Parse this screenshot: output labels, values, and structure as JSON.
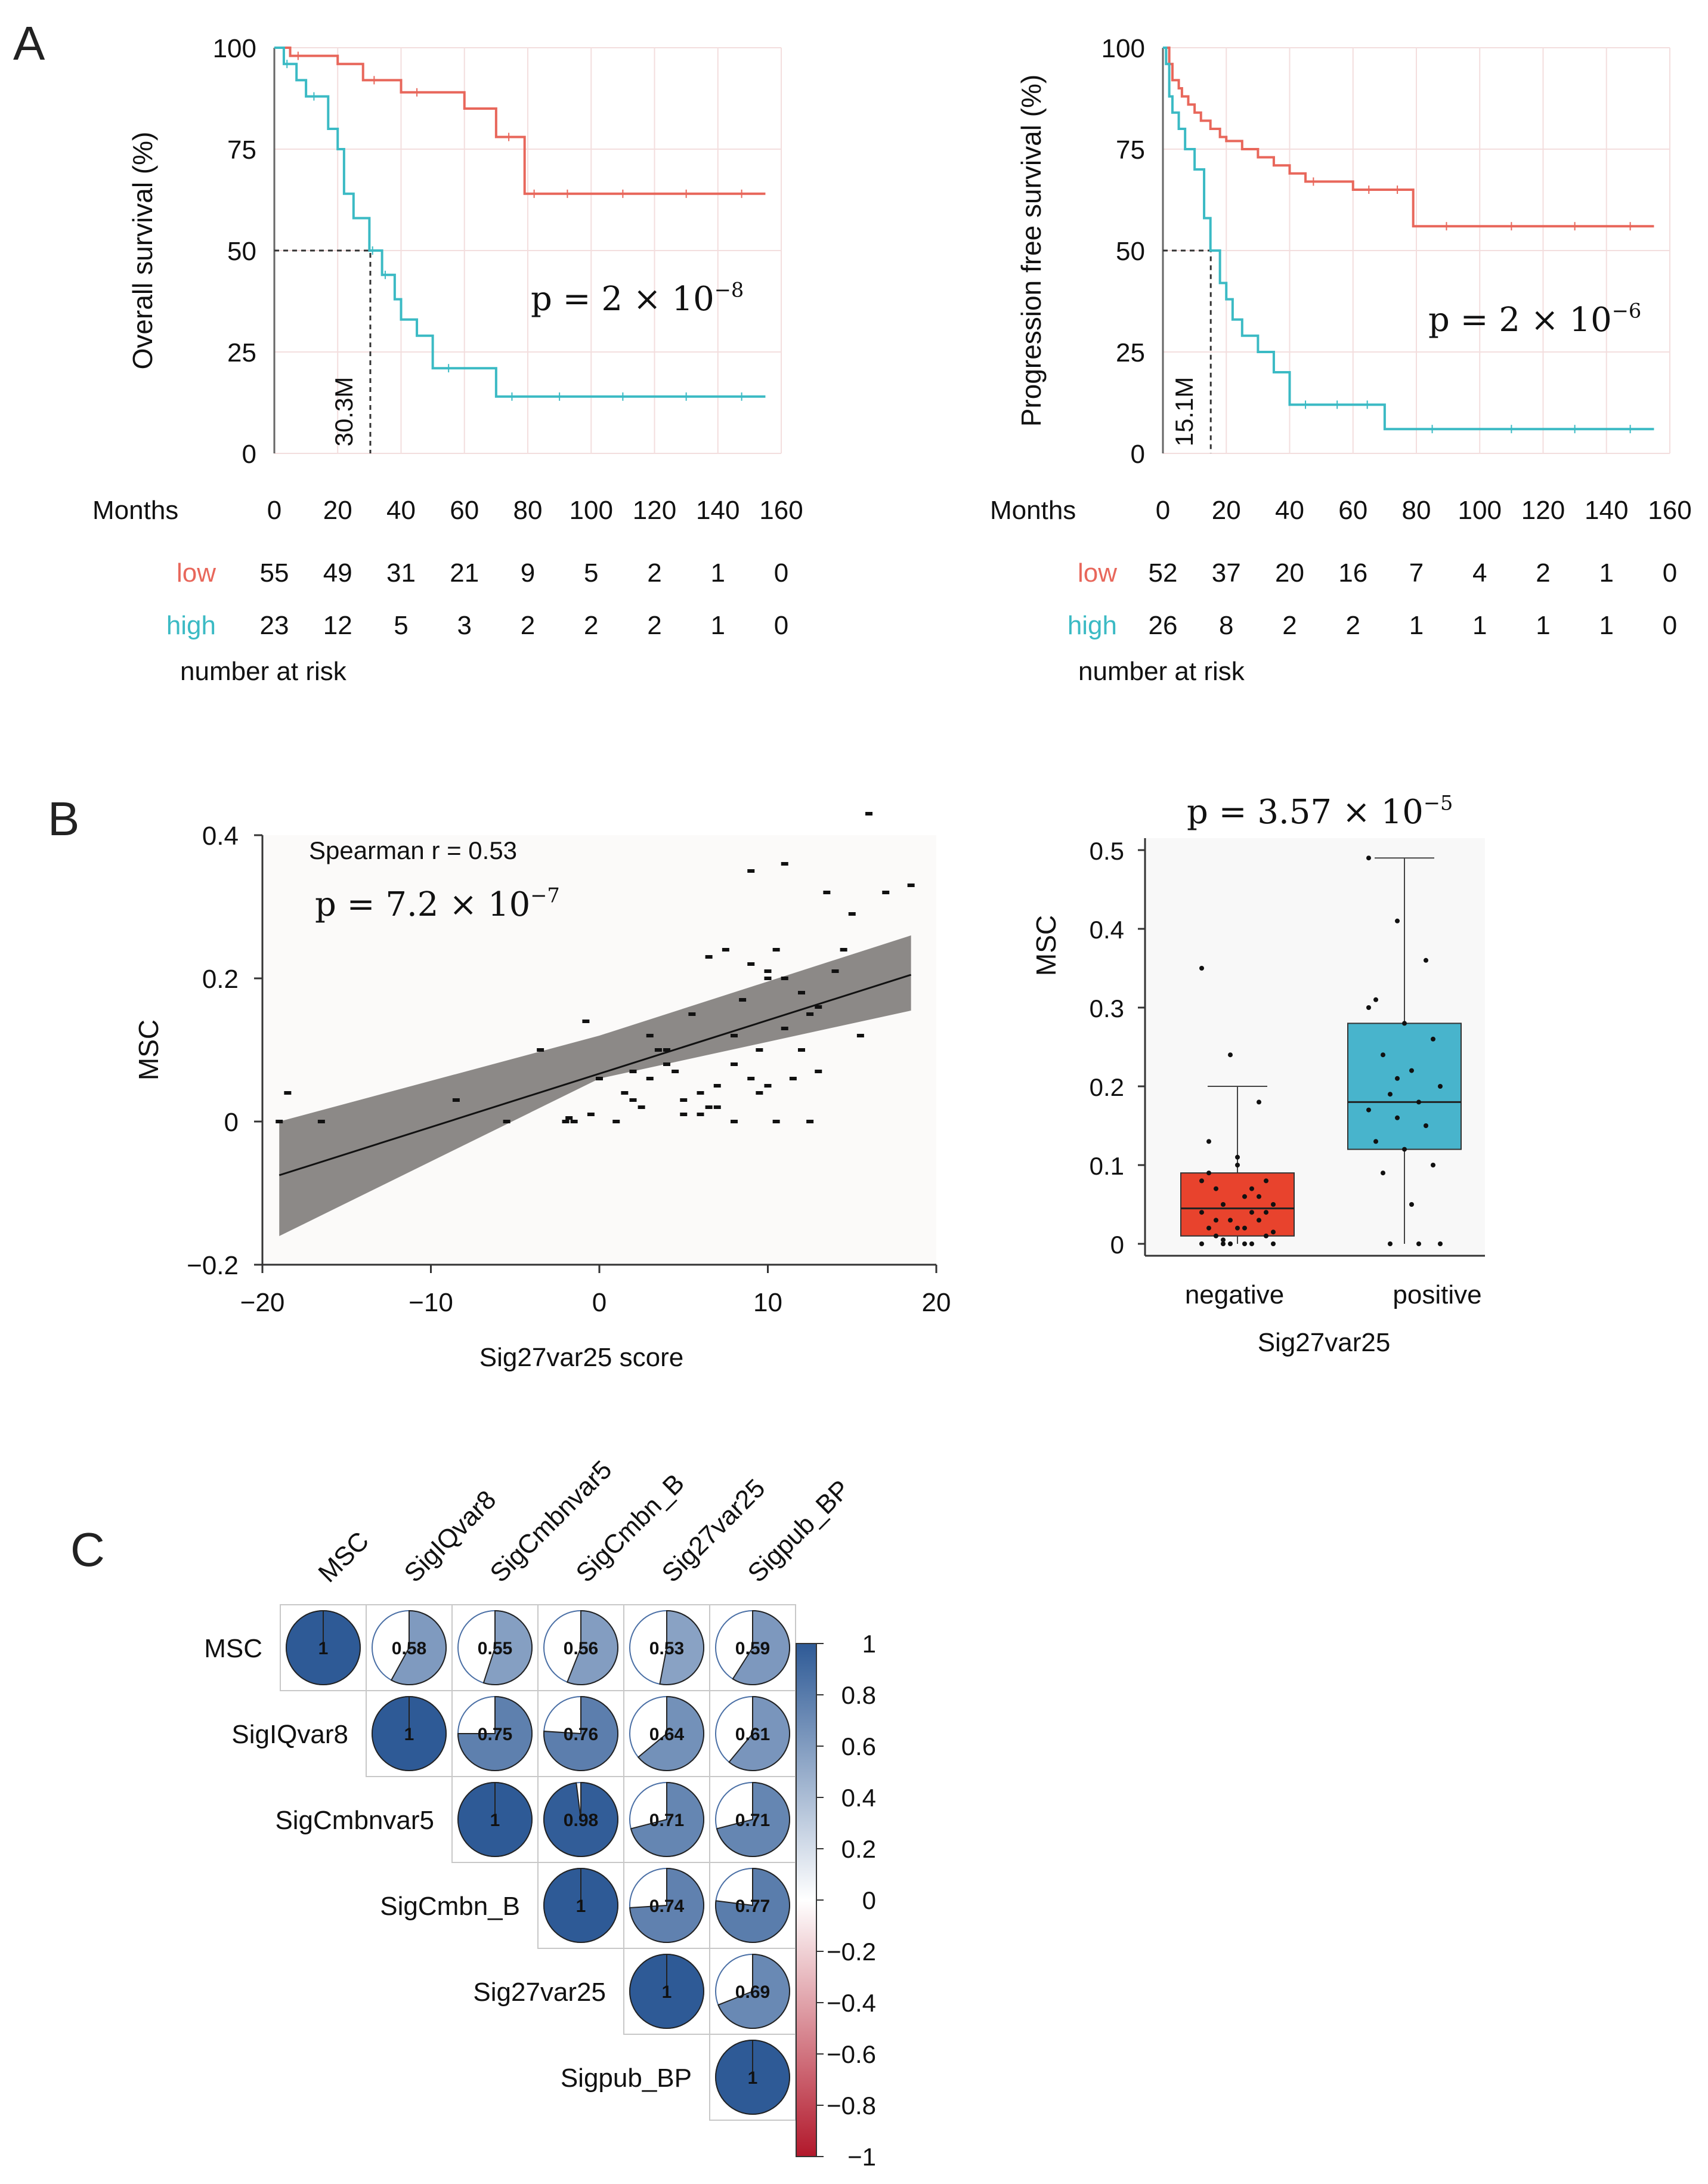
{
  "panels": {
    "a": {
      "label": "A"
    },
    "b": {
      "label": "B"
    },
    "c": {
      "label": "C"
    }
  },
  "colors": {
    "low": "#E8675B",
    "high": "#3BBAC4",
    "grid": "#F3DEDE",
    "band": "#8C8987",
    "box_negative": "#E8432D",
    "box_positive": "#48B4CC",
    "corr_high": "#2E5A96",
    "corr_low": "#B2182B"
  },
  "chart_data": [
    {
      "id": "os",
      "type": "km",
      "title": "",
      "ylabel": "Overall survival (%)",
      "xlabel": "Months",
      "xlim": [
        0,
        160
      ],
      "ylim": [
        0,
        100
      ],
      "xticks": [
        "0",
        "20",
        "40",
        "60",
        "80",
        "100",
        "120",
        "140",
        "160"
      ],
      "yticks": [
        "0",
        "25",
        "50",
        "75",
        "100"
      ],
      "pvalue": {
        "prefix": "p = 2 × 10",
        "exp": "−8"
      },
      "median_label": "30.3M",
      "median": 30.3,
      "groups": [
        {
          "name": "low",
          "x": [
            0,
            5,
            10,
            20,
            28,
            35,
            40,
            50,
            60,
            70,
            78,
            79,
            85,
            100,
            120,
            140,
            155
          ],
          "y": [
            100,
            98,
            98,
            96,
            92,
            92,
            89,
            89,
            85,
            78,
            78,
            64,
            64,
            64,
            64,
            64,
            64
          ]
        },
        {
          "name": "high",
          "x": [
            0,
            3,
            5,
            7,
            10,
            15,
            17,
            20,
            22,
            25,
            30,
            32,
            34,
            36,
            38,
            40,
            45,
            50,
            60,
            70,
            80,
            100,
            120,
            140,
            155
          ],
          "y": [
            100,
            96,
            96,
            92,
            88,
            88,
            80,
            75,
            64,
            58,
            50,
            50,
            44,
            44,
            38,
            33,
            29,
            21,
            21,
            14,
            14,
            14,
            14,
            14,
            14
          ]
        }
      ],
      "risk": {
        "title": "number at risk",
        "rows": [
          {
            "name": "low",
            "values": [
              "55",
              "49",
              "31",
              "21",
              "9",
              "5",
              "2",
              "1",
              "0"
            ]
          },
          {
            "name": "high",
            "values": [
              "23",
              "12",
              "5",
              "3",
              "2",
              "2",
              "2",
              "1",
              "0"
            ]
          }
        ]
      }
    },
    {
      "id": "pfs",
      "type": "km",
      "title": "",
      "ylabel": "Progression free survival (%)",
      "xlabel": "Months",
      "xlim": [
        0,
        160
      ],
      "ylim": [
        0,
        100
      ],
      "xticks": [
        "0",
        "20",
        "40",
        "60",
        "80",
        "100",
        "120",
        "140",
        "160"
      ],
      "yticks": [
        "0",
        "25",
        "50",
        "75",
        "100"
      ],
      "pvalue": {
        "prefix": "p = 2 × 10",
        "exp": "−6"
      },
      "median_label": "15.1M",
      "median": 15.1,
      "groups": [
        {
          "name": "low",
          "x": [
            0,
            2,
            3,
            5,
            6,
            8,
            10,
            12,
            15,
            18,
            20,
            25,
            30,
            35,
            40,
            45,
            50,
            60,
            70,
            78,
            79,
            100,
            120,
            140,
            155
          ],
          "y": [
            100,
            96,
            92,
            90,
            88,
            86,
            84,
            82,
            80,
            78,
            77,
            75,
            73,
            71,
            69,
            67,
            67,
            65,
            65,
            65,
            56,
            56,
            56,
            56,
            56
          ]
        },
        {
          "name": "high",
          "x": [
            0,
            1,
            2,
            3,
            5,
            7,
            10,
            13,
            15,
            18,
            20,
            22,
            25,
            30,
            35,
            40,
            50,
            60,
            69,
            70,
            100,
            120,
            140,
            155
          ],
          "y": [
            100,
            96,
            88,
            84,
            80,
            75,
            70,
            58,
            50,
            42,
            38,
            33,
            29,
            25,
            20,
            12,
            12,
            12,
            12,
            6,
            6,
            6,
            6,
            6
          ]
        }
      ],
      "risk": {
        "title": "number at risk",
        "rows": [
          {
            "name": "low",
            "values": [
              "52",
              "37",
              "20",
              "16",
              "7",
              "4",
              "2",
              "1",
              "0"
            ]
          },
          {
            "name": "high",
            "values": [
              "26",
              "8",
              "2",
              "2",
              "1",
              "1",
              "1",
              "1",
              "0"
            ]
          }
        ]
      }
    },
    {
      "id": "scatter",
      "type": "scatter",
      "title": "",
      "xlabel": "Sig27var25 score",
      "ylabel": "MSC",
      "xlim": [
        -20,
        20
      ],
      "ylim": [
        -0.2,
        0.4
      ],
      "xticks": [
        "−20",
        "−10",
        "0",
        "10",
        "20"
      ],
      "yticks": [
        "−0.2",
        "0",
        "0.2",
        "0.4"
      ],
      "stat_label": "Spearman r = 0.53",
      "pvalue": {
        "prefix": "p = 7.2 × 10",
        "exp": "−7"
      },
      "fit": {
        "x": [
          -19,
          18.5
        ],
        "y": [
          -0.075,
          0.205
        ],
        "band": [
          [
            -19,
            -0.16,
            0.0
          ],
          [
            0,
            0.06,
            0.12
          ],
          [
            18.5,
            0.155,
            0.26
          ]
        ]
      },
      "points": [
        [
          -19,
          0
        ],
        [
          -18.5,
          0.04
        ],
        [
          -16.5,
          0
        ],
        [
          -8.5,
          0.03
        ],
        [
          -5.5,
          0
        ],
        [
          -3.5,
          0.1
        ],
        [
          -2,
          0
        ],
        [
          -1.8,
          0.005
        ],
        [
          -1.5,
          0
        ],
        [
          -0.8,
          0.14
        ],
        [
          -0.5,
          0.01
        ],
        [
          0,
          0.06
        ],
        [
          1,
          0
        ],
        [
          1.5,
          0.04
        ],
        [
          2,
          0.03
        ],
        [
          2.5,
          0.02
        ],
        [
          3,
          0.06
        ],
        [
          3.5,
          0.1
        ],
        [
          4,
          0.08
        ],
        [
          4.5,
          0.07
        ],
        [
          5,
          0.01
        ],
        [
          5.5,
          0.15
        ],
        [
          6,
          0.04
        ],
        [
          6.5,
          0.02
        ],
        [
          7,
          0.05
        ],
        [
          7.5,
          0.24
        ],
        [
          8,
          0
        ],
        [
          8,
          0.12
        ],
        [
          8.5,
          0.17
        ],
        [
          9,
          0.35
        ],
        [
          9,
          0.06
        ],
        [
          9.5,
          0.04
        ],
        [
          10,
          0.2
        ],
        [
          10.5,
          0.24
        ],
        [
          10.5,
          0
        ],
        [
          11,
          0.13
        ],
        [
          11,
          0.36
        ],
        [
          11.5,
          0.06
        ],
        [
          12,
          0.18
        ],
        [
          12.5,
          0.15
        ],
        [
          12.5,
          0
        ],
        [
          13,
          0.16
        ],
        [
          13.5,
          0.32
        ],
        [
          14,
          0.21
        ],
        [
          15,
          0.29
        ],
        [
          15.5,
          0.12
        ],
        [
          16,
          0.43
        ],
        [
          17,
          0.32
        ],
        [
          18.5,
          0.33
        ],
        [
          10,
          0.21
        ],
        [
          9,
          0.22
        ],
        [
          8,
          0.08
        ],
        [
          7,
          0.02
        ],
        [
          6,
          0.01
        ],
        [
          5,
          0.03
        ],
        [
          4,
          0.1
        ],
        [
          3,
          0.12
        ],
        [
          2,
          0.07
        ],
        [
          12,
          0.1
        ],
        [
          11,
          0.2
        ],
        [
          13,
          0.07
        ],
        [
          14.5,
          0.24
        ],
        [
          6.5,
          0.23
        ],
        [
          10,
          0.05
        ],
        [
          9.5,
          0.1
        ]
      ]
    },
    {
      "id": "box",
      "type": "box",
      "title": "",
      "pvalue": {
        "prefix": "p = 3.57 × 10",
        "exp": "−5"
      },
      "ylabel": "MSC",
      "xlabel": "Sig27var25",
      "ylim": [
        0,
        0.5
      ],
      "yticks": [
        "0",
        "0.1",
        "0.2",
        "0.3",
        "0.4",
        "0.5"
      ],
      "categories": [
        "negative",
        "positive"
      ],
      "boxes": [
        {
          "name": "negative",
          "min": 0,
          "q1": 0.01,
          "median": 0.045,
          "q3": 0.09,
          "max": 0.2,
          "points": [
            0.35,
            0.24,
            0.18,
            0.13,
            0.1,
            0.08,
            0.07,
            0.06,
            0.05,
            0.05,
            0.04,
            0.04,
            0.03,
            0.03,
            0.02,
            0.02,
            0.01,
            0.01,
            0,
            0,
            0,
            0,
            0,
            0,
            0.06,
            0.09,
            0.11,
            0.04,
            0.03,
            0.02,
            0.015,
            0.005,
            0.07,
            0.08
          ]
        },
        {
          "name": "positive",
          "min": 0,
          "q1": 0.12,
          "median": 0.18,
          "q3": 0.28,
          "max": 0.49,
          "points": [
            0.49,
            0.41,
            0.36,
            0.31,
            0.28,
            0.26,
            0.24,
            0.22,
            0.2,
            0.19,
            0.18,
            0.17,
            0.16,
            0.15,
            0.13,
            0.12,
            0.1,
            0.09,
            0.05,
            0,
            0,
            0,
            0.3,
            0.21
          ]
        }
      ]
    },
    {
      "id": "corr",
      "type": "heatmap",
      "title": "",
      "labels": [
        "MSC",
        "SigIQvar8",
        "SigCmbnvar5",
        "SigCmbn_B",
        "Sig27var25",
        "Sigpub_BP"
      ],
      "matrix": [
        [
          1,
          0.58,
          0.55,
          0.56,
          0.53,
          0.59
        ],
        [
          null,
          1,
          0.75,
          0.76,
          0.64,
          0.61
        ],
        [
          null,
          null,
          1,
          0.98,
          0.71,
          0.71
        ],
        [
          null,
          null,
          null,
          1,
          0.74,
          0.77
        ],
        [
          null,
          null,
          null,
          null,
          1,
          0.69
        ],
        [
          null,
          null,
          null,
          null,
          null,
          1
        ]
      ],
      "cell_labels": [
        [
          "1",
          "0.58",
          "0.55",
          "0.56",
          "0.53",
          "0.59"
        ],
        [
          "",
          "1",
          "0.75",
          "0.76",
          "0.64",
          "0.61"
        ],
        [
          "",
          "",
          "1",
          "0.98",
          "0.71",
          "0.71"
        ],
        [
          "",
          "",
          "",
          "1",
          "0.74",
          "0.77"
        ],
        [
          "",
          "",
          "",
          "",
          "1",
          "0.69"
        ],
        [
          "",
          "",
          "",
          "",
          "",
          "1"
        ]
      ],
      "colorbar_ticks": [
        "1",
        "0.8",
        "0.6",
        "0.4",
        "0.2",
        "0",
        "−0.2",
        "−0.4",
        "−0.6",
        "−0.8",
        "−1"
      ],
      "colorbar_range": [
        -1,
        1
      ]
    }
  ]
}
